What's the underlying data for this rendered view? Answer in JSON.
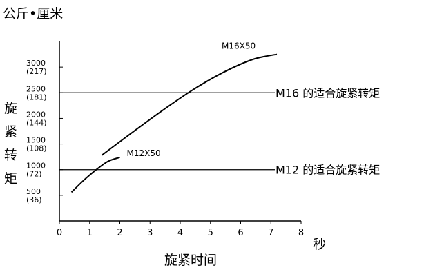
{
  "chart_data": {
    "type": "line",
    "unit_label": "公斤•厘米",
    "xlabel": "旋紧时间",
    "x_unit": "秒",
    "ylabel_chars": [
      "旋",
      "紧",
      "转",
      "矩"
    ],
    "xlim": [
      0,
      8
    ],
    "ylim": [
      0,
      3500
    ],
    "x_ticks": [
      "0",
      "1",
      "2",
      "3",
      "4",
      "5",
      "6",
      "7",
      "8"
    ],
    "y_ticks": [
      {
        "value": 500,
        "main": "500",
        "sub": "(36)"
      },
      {
        "value": 1000,
        "main": "1000",
        "sub": "(72)"
      },
      {
        "value": 1500,
        "main": "1500",
        "sub": "(108)"
      },
      {
        "value": 2000,
        "main": "2000",
        "sub": "(144)"
      },
      {
        "value": 2500,
        "main": "2500",
        "sub": "(181)"
      },
      {
        "value": 3000,
        "main": "3000",
        "sub": "(217)"
      }
    ],
    "reference_lines": [
      {
        "label": "M16 的适合旋紧转矩",
        "y": 2500
      },
      {
        "label": "M12 的适合旋紧转矩",
        "y": 1000
      }
    ],
    "series": [
      {
        "name": "M12X50",
        "x": [
          0.4,
          0.8,
          1.2,
          1.6,
          2.0
        ],
        "y": [
          560,
          790,
          990,
          1160,
          1240
        ]
      },
      {
        "name": "M16X50",
        "x": [
          1.4,
          2.4,
          3.4,
          4.4,
          5.4,
          6.4,
          7.2
        ],
        "y": [
          1280,
          1720,
          2150,
          2550,
          2890,
          3150,
          3250
        ]
      }
    ]
  }
}
